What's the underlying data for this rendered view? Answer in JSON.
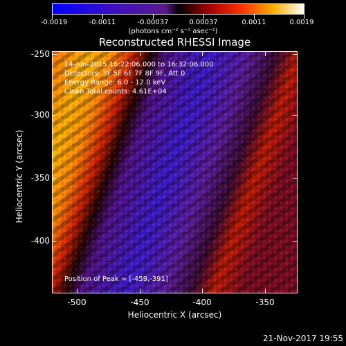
{
  "colorbar": {
    "labels": [
      "-0.0019",
      "-0.0011",
      "-0.00037",
      "0.00037",
      "0.0011",
      "0.0019"
    ],
    "units": "(photons cm⁻² s⁻¹ asec⁻²)"
  },
  "title": "Reconstructed RHESSI Image",
  "info": {
    "time": "14-Jun-2015 16:22:06.000 to 16:32:06.000",
    "detectors": "Detectors: 3F 5F 6F 7F 8F 9F, Att 0",
    "energy": "Energy Range: 6.0 - 12.0 keV",
    "clean": "Clean     Total counts: 4.61E+04",
    "peak": "Position of Peak = [-459,-391]"
  },
  "axes": {
    "xlabel": "Heliocentric X (arcsec)",
    "ylabel": "Heliocentric Y (arcsec)",
    "xticks": [
      "-500",
      "-450",
      "-400",
      "-350"
    ],
    "yticks": [
      "-250",
      "-300",
      "-350",
      "-400"
    ]
  },
  "footer": {
    "date": "21-Nov-2017 19:55"
  }
}
